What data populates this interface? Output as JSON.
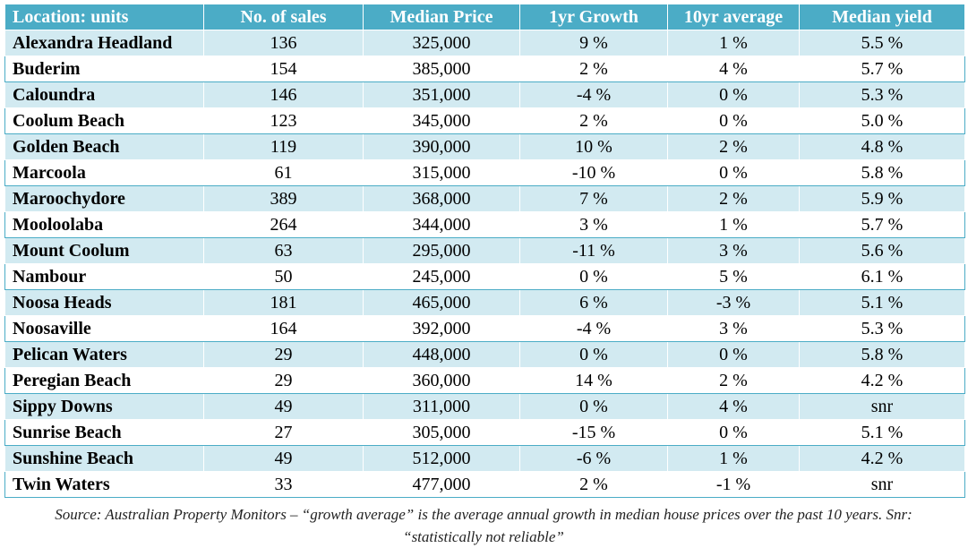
{
  "table": {
    "headers": [
      "Location: units",
      "No. of sales",
      "Median Price",
      "1yr Growth",
      "10yr average",
      "Median yield"
    ],
    "rows": [
      [
        "Alexandra Headland",
        "136",
        "325,000",
        "9 %",
        "1 %",
        "5.5 %"
      ],
      [
        "Buderim",
        "154",
        "385,000",
        "2 %",
        "4 %",
        "5.7 %"
      ],
      [
        "Caloundra",
        "146",
        "351,000",
        "-4 %",
        "0 %",
        "5.3 %"
      ],
      [
        "Coolum Beach",
        "123",
        "345,000",
        "2 %",
        "0 %",
        "5.0 %"
      ],
      [
        "Golden Beach",
        "119",
        "390,000",
        "10 %",
        "2 %",
        "4.8 %"
      ],
      [
        "Marcoola",
        "61",
        "315,000",
        "-10 %",
        "0 %",
        "5.8 %"
      ],
      [
        "Maroochydore",
        "389",
        "368,000",
        "7 %",
        "2 %",
        "5.9 %"
      ],
      [
        "Mooloolaba",
        "264",
        "344,000",
        "3 %",
        "1 %",
        "5.7 %"
      ],
      [
        "Mount Coolum",
        "63",
        "295,000",
        "-11 %",
        "3 %",
        "5.6 %"
      ],
      [
        "Nambour",
        "50",
        "245,000",
        "0 %",
        "5 %",
        "6.1 %"
      ],
      [
        "Noosa Heads",
        "181",
        "465,000",
        "6 %",
        "-3 %",
        "5.1 %"
      ],
      [
        "Noosaville",
        "164",
        "392,000",
        "-4 %",
        "3 %",
        "5.3 %"
      ],
      [
        "Pelican Waters",
        "29",
        "448,000",
        "0 %",
        "0 %",
        "5.8 %"
      ],
      [
        "Peregian Beach",
        "29",
        "360,000",
        "14 %",
        "2 %",
        "4.2 %"
      ],
      [
        "Sippy Downs",
        "49",
        "311,000",
        "0 %",
        "4 %",
        "snr"
      ],
      [
        "Sunrise Beach",
        "27",
        "305,000",
        "-15 %",
        "0 %",
        "5.1 %"
      ],
      [
        "Sunshine Beach",
        "49",
        "512,000",
        "-6 %",
        "1 %",
        "4.2 %"
      ],
      [
        "Twin Waters",
        "33",
        "477,000",
        "2 %",
        "-1 %",
        "snr"
      ]
    ]
  },
  "source_note": "Source: Australian Property Monitors – “growth average” is the average annual growth in median house prices over the past 10 years. Snr: “statistically not reliable”",
  "colors": {
    "header_bg": "#4bacc6",
    "header_text": "#ffffff",
    "band_row_bg": "#d2eaf1",
    "plain_row_bg": "#ffffff",
    "body_text": "#000000"
  }
}
